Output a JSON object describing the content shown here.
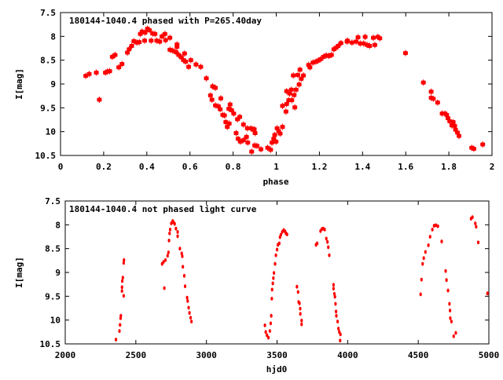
{
  "chart_data": [
    {
      "type": "scatter",
      "title": "180144-1040.4 phased with P=265.40day",
      "xlabel": "phase",
      "ylabel": "I[mag]",
      "xlim": [
        0,
        2
      ],
      "ylim": [
        10.5,
        7.5
      ],
      "y_inverted": true,
      "xticks": [
        "0",
        "0.2",
        "0.4",
        "0.6",
        "0.8",
        "1",
        "1.2",
        "1.4",
        "1.6",
        "1.8",
        "2"
      ],
      "yticks": [
        "7.5",
        "8",
        "8.5",
        "9",
        "9.5",
        "10",
        "10.5"
      ],
      "color": "#ff0000",
      "points": [
        [
          0.117,
          8.83
        ],
        [
          0.133,
          8.79
        ],
        [
          0.166,
          8.76
        ],
        [
          0.18,
          9.33
        ],
        [
          0.208,
          8.76
        ],
        [
          0.217,
          8.74
        ],
        [
          0.228,
          8.73
        ],
        [
          0.24,
          8.43
        ],
        [
          0.253,
          8.39
        ],
        [
          0.27,
          8.65
        ],
        [
          0.285,
          8.58
        ],
        [
          0.31,
          8.34
        ],
        [
          0.318,
          8.27
        ],
        [
          0.33,
          8.2
        ],
        [
          0.34,
          8.1
        ],
        [
          0.354,
          8.13
        ],
        [
          0.365,
          8.12
        ],
        [
          0.37,
          7.95
        ],
        [
          0.378,
          7.9
        ],
        [
          0.392,
          7.92
        ],
        [
          0.403,
          7.84
        ],
        [
          0.39,
          8.09
        ],
        [
          0.412,
          7.87
        ],
        [
          0.42,
          8.09
        ],
        [
          0.427,
          7.94
        ],
        [
          0.438,
          7.95
        ],
        [
          0.446,
          8.09
        ],
        [
          0.46,
          8.11
        ],
        [
          0.47,
          8.0
        ],
        [
          0.484,
          7.95
        ],
        [
          0.487,
          8.08
        ],
        [
          0.507,
          8.03
        ],
        [
          0.507,
          8.28
        ],
        [
          0.52,
          8.3
        ],
        [
          0.535,
          8.33
        ],
        [
          0.54,
          8.17
        ],
        [
          0.54,
          8.22
        ],
        [
          0.548,
          8.39
        ],
        [
          0.56,
          8.44
        ],
        [
          0.57,
          8.5
        ],
        [
          0.58,
          8.53
        ],
        [
          0.575,
          8.36
        ],
        [
          0.594,
          8.64
        ],
        [
          0.604,
          8.5
        ],
        [
          0.628,
          8.59
        ],
        [
          0.65,
          8.64
        ],
        [
          0.676,
          8.88
        ],
        [
          0.695,
          9.24
        ],
        [
          0.702,
          9.33
        ],
        [
          0.705,
          9.05
        ],
        [
          0.718,
          9.08
        ],
        [
          0.718,
          9.45
        ],
        [
          0.732,
          9.47
        ],
        [
          0.74,
          9.53
        ],
        [
          0.743,
          9.3
        ],
        [
          0.752,
          9.65
        ],
        [
          0.76,
          9.66
        ],
        [
          0.766,
          9.8
        ],
        [
          0.773,
          9.9
        ],
        [
          0.782,
          9.83
        ],
        [
          0.78,
          9.52
        ],
        [
          0.786,
          9.43
        ],
        [
          0.793,
          9.55
        ],
        [
          0.803,
          9.62
        ],
        [
          0.814,
          10.03
        ],
        [
          0.82,
          9.74
        ],
        [
          0.823,
          10.15
        ],
        [
          0.831,
          9.69
        ],
        [
          0.834,
          10.21
        ],
        [
          0.848,
          10.18
        ],
        [
          0.848,
          9.85
        ],
        [
          0.862,
          10.11
        ],
        [
          0.866,
          9.93
        ],
        [
          0.868,
          10.23
        ],
        [
          0.882,
          9.93
        ],
        [
          0.886,
          10.42
        ],
        [
          0.893,
          9.96
        ],
        [
          0.898,
          9.95
        ],
        [
          0.9,
          10.29
        ],
        [
          0.902,
          10.03
        ],
        [
          0.911,
          10.3
        ],
        [
          0.929,
          10.37
        ],
        [
          0.96,
          10.34
        ],
        [
          0.974,
          10.38
        ],
        [
          0.98,
          10.23
        ],
        [
          0.988,
          10.15
        ],
        [
          0.993,
          10.07
        ],
        [
          0.999,
          10.21
        ],
        [
          1.004,
          9.93
        ],
        [
          1.011,
          9.99
        ],
        [
          1.018,
          10.04
        ],
        [
          1.029,
          9.9
        ],
        [
          1.029,
          9.46
        ],
        [
          1.045,
          9.58
        ],
        [
          1.048,
          9.42
        ],
        [
          1.048,
          9.15
        ],
        [
          1.058,
          9.34
        ],
        [
          1.062,
          9.2
        ],
        [
          1.07,
          9.12
        ],
        [
          1.072,
          9.34
        ],
        [
          1.079,
          8.82
        ],
        [
          1.083,
          9.23
        ],
        [
          1.086,
          9.49
        ],
        [
          1.092,
          9.12
        ],
        [
          1.1,
          8.81
        ],
        [
          1.106,
          9.01
        ],
        [
          1.11,
          8.7
        ],
        [
          1.116,
          8.89
        ],
        [
          1.126,
          8.82
        ],
        [
          1.15,
          8.6
        ],
        [
          1.156,
          8.65
        ],
        [
          1.17,
          8.55
        ],
        [
          1.184,
          8.53
        ],
        [
          1.194,
          8.51
        ],
        [
          1.205,
          8.48
        ],
        [
          1.219,
          8.43
        ],
        [
          1.232,
          8.4
        ],
        [
          1.244,
          8.41
        ],
        [
          1.256,
          8.39
        ],
        [
          1.267,
          8.27
        ],
        [
          1.277,
          8.24
        ],
        [
          1.287,
          8.2
        ],
        [
          1.3,
          8.14
        ],
        [
          1.328,
          8.11
        ],
        [
          1.33,
          8.09
        ],
        [
          1.351,
          8.13
        ],
        [
          1.37,
          8.11
        ],
        [
          1.379,
          8.02
        ],
        [
          1.389,
          8.15
        ],
        [
          1.405,
          8.15
        ],
        [
          1.412,
          8.01
        ],
        [
          1.421,
          8.18
        ],
        [
          1.433,
          8.2
        ],
        [
          1.45,
          8.03
        ],
        [
          1.457,
          8.18
        ],
        [
          1.471,
          8.01
        ],
        [
          1.48,
          8.04
        ],
        [
          1.599,
          8.35
        ],
        [
          1.682,
          8.97
        ],
        [
          1.718,
          9.16
        ],
        [
          1.718,
          9.29
        ],
        [
          1.728,
          9.31
        ],
        [
          1.748,
          9.39
        ],
        [
          1.769,
          9.62
        ],
        [
          1.782,
          9.62
        ],
        [
          1.79,
          9.65
        ],
        [
          1.796,
          9.72
        ],
        [
          1.804,
          9.78
        ],
        [
          1.814,
          9.87
        ],
        [
          1.82,
          9.8
        ],
        [
          1.827,
          9.88
        ],
        [
          1.831,
          9.96
        ],
        [
          1.84,
          10.02
        ],
        [
          1.847,
          10.09
        ],
        [
          1.906,
          10.34
        ],
        [
          1.916,
          10.36
        ],
        [
          1.957,
          10.27
        ]
      ]
    },
    {
      "type": "scatter",
      "title": "180144-1040.4 not phased light curve",
      "xlabel": "hjd0",
      "ylabel": "I[mag]",
      "xlim": [
        2000,
        5000
      ],
      "ylim": [
        10.5,
        7.5
      ],
      "y_inverted": true,
      "xticks": [
        "2000",
        "2500",
        "3000",
        "3500",
        "4000",
        "4500",
        "5000"
      ],
      "yticks": [
        "7.5",
        "8",
        "8.5",
        "9",
        "9.5",
        "10",
        "10.5"
      ],
      "color": "#ff0000",
      "points": [
        [
          2359,
          10.41
        ],
        [
          2384,
          10.23
        ],
        [
          2388,
          10.1
        ],
        [
          2392,
          9.96
        ],
        [
          2394,
          9.91
        ],
        [
          2402,
          9.39
        ],
        [
          2402,
          9.31
        ],
        [
          2404,
          9.18
        ],
        [
          2408,
          9.11
        ],
        [
          2414,
          9.49
        ],
        [
          2414,
          8.8
        ],
        [
          2416,
          8.74
        ],
        [
          2686,
          8.82
        ],
        [
          2696,
          8.78
        ],
        [
          2702,
          9.33
        ],
        [
          2710,
          8.74
        ],
        [
          2725,
          8.65
        ],
        [
          2731,
          8.58
        ],
        [
          2735,
          8.33
        ],
        [
          2739,
          8.18
        ],
        [
          2743,
          8.1
        ],
        [
          2751,
          7.97
        ],
        [
          2761,
          7.92
        ],
        [
          2767,
          7.95
        ],
        [
          2775,
          7.98
        ],
        [
          2784,
          8.08
        ],
        [
          2796,
          8.15
        ],
        [
          2796,
          8.24
        ],
        [
          2812,
          8.5
        ],
        [
          2825,
          8.6
        ],
        [
          2829,
          8.66
        ],
        [
          2833,
          8.88
        ],
        [
          2843,
          9.07
        ],
        [
          2849,
          9.29
        ],
        [
          2863,
          9.53
        ],
        [
          2867,
          9.6
        ],
        [
          2874,
          9.74
        ],
        [
          2880,
          9.85
        ],
        [
          2888,
          9.95
        ],
        [
          2894,
          10.03
        ],
        [
          3414,
          10.11
        ],
        [
          3420,
          10.25
        ],
        [
          3429,
          10.32
        ],
        [
          3439,
          10.37
        ],
        [
          3449,
          10.23
        ],
        [
          3455,
          10.07
        ],
        [
          3459,
          9.91
        ],
        [
          3463,
          9.55
        ],
        [
          3465,
          9.36
        ],
        [
          3470,
          9.23
        ],
        [
          3474,
          9.12
        ],
        [
          3478,
          9.01
        ],
        [
          3486,
          8.82
        ],
        [
          3492,
          8.64
        ],
        [
          3500,
          8.52
        ],
        [
          3506,
          8.42
        ],
        [
          3516,
          8.39
        ],
        [
          3521,
          8.26
        ],
        [
          3527,
          8.21
        ],
        [
          3537,
          8.15
        ],
        [
          3547,
          8.11
        ],
        [
          3557,
          8.14
        ],
        [
          3563,
          8.18
        ],
        [
          3571,
          8.2
        ],
        [
          3641,
          9.3
        ],
        [
          3649,
          9.41
        ],
        [
          3653,
          9.62
        ],
        [
          3659,
          9.65
        ],
        [
          3664,
          9.76
        ],
        [
          3665,
          9.87
        ],
        [
          3674,
          10.01
        ],
        [
          3674,
          10.09
        ],
        [
          3776,
          8.42
        ],
        [
          3784,
          8.39
        ],
        [
          3808,
          8.13
        ],
        [
          3817,
          8.09
        ],
        [
          3827,
          8.08
        ],
        [
          3837,
          8.1
        ],
        [
          3849,
          8.29
        ],
        [
          3857,
          8.36
        ],
        [
          3863,
          8.47
        ],
        [
          3870,
          8.64
        ],
        [
          3900,
          9.26
        ],
        [
          3900,
          9.34
        ],
        [
          3906,
          9.45
        ],
        [
          3910,
          9.51
        ],
        [
          3914,
          9.66
        ],
        [
          3918,
          9.82
        ],
        [
          3920,
          9.91
        ],
        [
          3929,
          10.03
        ],
        [
          3935,
          10.18
        ],
        [
          3941,
          10.25
        ],
        [
          3949,
          10.3
        ],
        [
          3947,
          10.43
        ],
        [
          4517,
          9.46
        ],
        [
          4523,
          9.15
        ],
        [
          4531,
          8.82
        ],
        [
          4539,
          8.7
        ],
        [
          4551,
          8.57
        ],
        [
          4572,
          8.43
        ],
        [
          4584,
          8.25
        ],
        [
          4600,
          8.1
        ],
        [
          4612,
          8.02
        ],
        [
          4625,
          8.01
        ],
        [
          4639,
          8.03
        ],
        [
          4666,
          8.35
        ],
        [
          4694,
          8.97
        ],
        [
          4700,
          9.16
        ],
        [
          4711,
          9.38
        ],
        [
          4721,
          9.66
        ],
        [
          4725,
          9.8
        ],
        [
          4727,
          9.96
        ],
        [
          4735,
          10.03
        ],
        [
          4751,
          10.34
        ],
        [
          4766,
          10.27
        ],
        [
          4874,
          7.87
        ],
        [
          4884,
          7.84
        ],
        [
          4904,
          7.97
        ],
        [
          4910,
          8.04
        ],
        [
          4925,
          8.37
        ],
        [
          4990,
          9.44
        ]
      ]
    }
  ]
}
